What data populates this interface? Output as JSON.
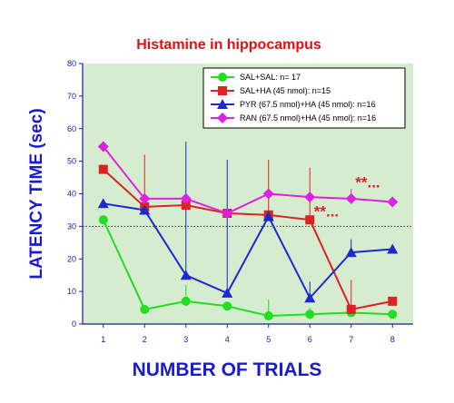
{
  "chart_data": {
    "type": "line",
    "title": "Histamine in hippocampus",
    "xlabel": "NUMBER OF TRIALS",
    "ylabel": "LATENCY TIME (sec)",
    "x": [
      1,
      2,
      3,
      4,
      5,
      6,
      7,
      8
    ],
    "ylim": [
      0,
      80
    ],
    "yticks": [
      0,
      10,
      20,
      30,
      40,
      50,
      60,
      70,
      80
    ],
    "reference_line_y": 30,
    "grid": false,
    "legend_position": "top-right",
    "series": [
      {
        "name": "SAL+SAL: n= 17",
        "color": "#22dd22",
        "marker": "circle",
        "values": [
          32,
          4.5,
          7,
          5.5,
          2.5,
          3,
          3.5,
          3
        ],
        "errors": [
          0,
          0,
          5,
          0,
          5,
          2,
          0,
          0
        ]
      },
      {
        "name": "SAL+HA (45 nmol): n=15",
        "color": "#dd2222",
        "marker": "square",
        "values": [
          47.5,
          36,
          36.5,
          34,
          33.5,
          32,
          4.5,
          7
        ],
        "errors": [
          0,
          16,
          0,
          0,
          17,
          16,
          9,
          0
        ]
      },
      {
        "name": "PYR (67.5 nmol)+HA (45 nmol): n=16",
        "color": "#1a2ad0",
        "marker": "triangle",
        "values": [
          37,
          35,
          15,
          9.5,
          33,
          8,
          22,
          23
        ],
        "errors": [
          0,
          0,
          41,
          41,
          0,
          5,
          4,
          0
        ]
      },
      {
        "name": "RAN (67.5 nmol)+HA (45 nmol): n=16",
        "color": "#e020e0",
        "marker": "diamond",
        "values": [
          54.5,
          38.5,
          38.5,
          34,
          40,
          39,
          38.5,
          37.5
        ],
        "errors": [
          0,
          0,
          0,
          0,
          0,
          0,
          3,
          0
        ]
      }
    ],
    "annotations": [
      {
        "text": "**...",
        "x": 6.4,
        "y": 33,
        "color": "#dd2222"
      },
      {
        "text": "**...",
        "x": 7.4,
        "y": 42,
        "color": "#dd2222"
      }
    ]
  }
}
